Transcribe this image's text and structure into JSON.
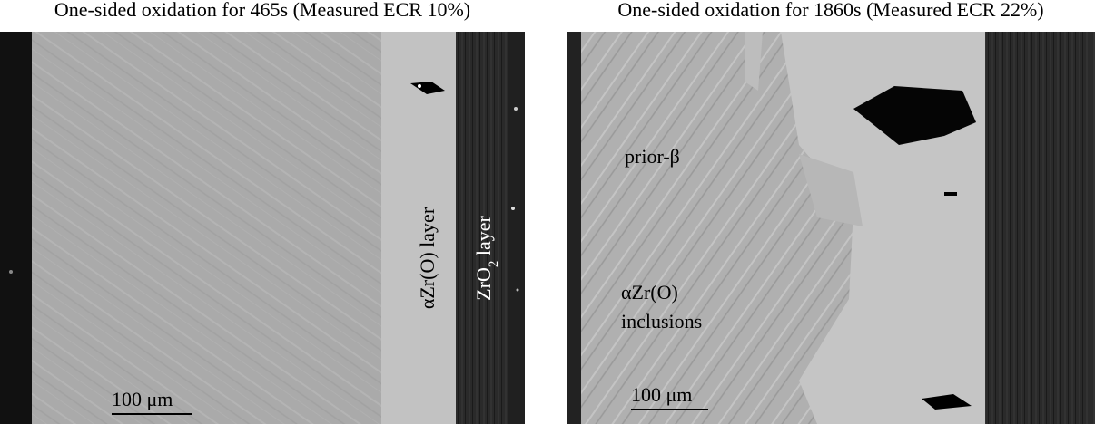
{
  "panels": [
    {
      "title": "One-sided oxidation for 465s (Measured ECR 10%)",
      "labels": [
        {
          "text": "αZr(O) layer"
        },
        {
          "base": "ZrO",
          "sub": "2",
          "rest": " layer"
        }
      ],
      "scale_bar": "100 μm"
    },
    {
      "title": "One-sided oxidation for 1860s (Measured ECR 22%)",
      "labels": [
        {
          "text": "prior-β"
        },
        {
          "lines": [
            "αZr(O)",
            "inclusions"
          ]
        }
      ],
      "scale_bar": "100 μm"
    }
  ]
}
